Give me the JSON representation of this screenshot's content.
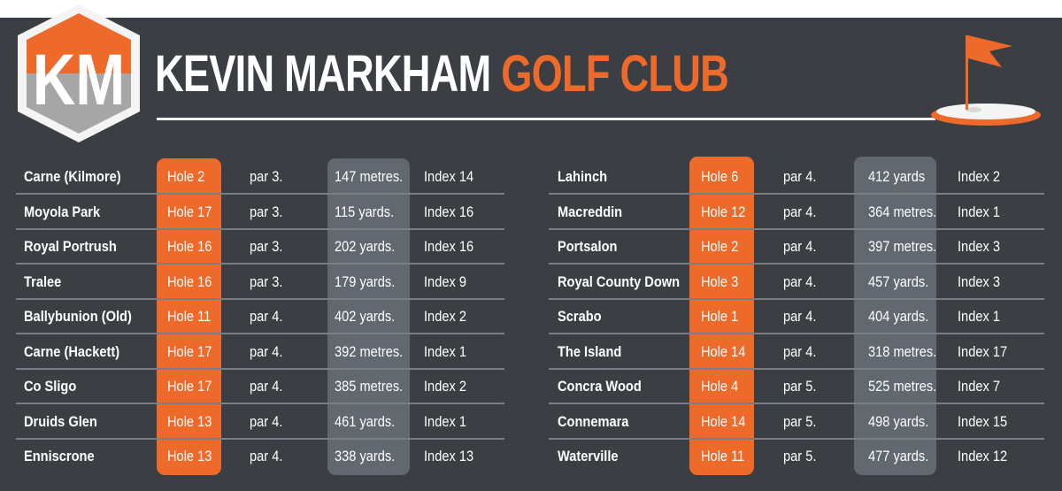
{
  "brand": {
    "logo_text": "KM",
    "title_main": "KEVIN MARKHAM",
    "title_accent": "GOLF CLUB",
    "colors": {
      "accent": "#ee6a2b",
      "background": "#3b3f44",
      "highlight_grey": "#626870"
    },
    "flag_icon": "golf-flag-icon"
  },
  "left_table": [
    {
      "course": "Carne (Kilmore)",
      "hole": "Hole 2",
      "par": "par 3.",
      "distance": "147 metres.",
      "index": "Index 14"
    },
    {
      "course": "Moyola Park",
      "hole": "Hole 17",
      "par": "par 3.",
      "distance": "115 yards.",
      "index": "Index 16"
    },
    {
      "course": "Royal Portrush",
      "hole": "Hole 16",
      "par": "par 3.",
      "distance": "202 yards.",
      "index": "Index 16"
    },
    {
      "course": "Tralee",
      "hole": "Hole 16",
      "par": "par 3.",
      "distance": "179 yards.",
      "index": "Index 9"
    },
    {
      "course": "Ballybunion (Old)",
      "hole": "Hole 11",
      "par": "par 4.",
      "distance": "402 yards.",
      "index": "Index 2"
    },
    {
      "course": "Carne (Hackett)",
      "hole": "Hole 17",
      "par": "par 4.",
      "distance": "392 metres.",
      "index": "Index 1"
    },
    {
      "course": "Co Sligo",
      "hole": "Hole 17",
      "par": "par 4.",
      "distance": "385 metres.",
      "index": "Index 2"
    },
    {
      "course": "Druids Glen",
      "hole": "Hole 13",
      "par": "par 4.",
      "distance": "461 yards.",
      "index": "Index 1"
    },
    {
      "course": "Enniscrone",
      "hole": "Hole 13",
      "par": "par 4.",
      "distance": "338 yards.",
      "index": "Index 13"
    }
  ],
  "right_table": [
    {
      "course": "Lahinch",
      "hole": "Hole 6",
      "par": "par 4.",
      "distance": "412 yards",
      "index": "Index 2"
    },
    {
      "course": "Macreddin",
      "hole": "Hole 12",
      "par": "par 4.",
      "distance": "364 metres.",
      "index": "Index 1"
    },
    {
      "course": "Portsalon",
      "hole": "Hole 2",
      "par": "par 4.",
      "distance": "397 metres.",
      "index": "Index 3"
    },
    {
      "course": "Royal County Down",
      "hole": "Hole 3",
      "par": "par 4.",
      "distance": "457 yards.",
      "index": "Index 3"
    },
    {
      "course": "Scrabo",
      "hole": "Hole 1",
      "par": "par 4.",
      "distance": "404 yards.",
      "index": "Index 1"
    },
    {
      "course": "The Island",
      "hole": "Hole 14",
      "par": "par 4.",
      "distance": "318 metres.",
      "index": "Index 17"
    },
    {
      "course": "Concra Wood",
      "hole": "Hole 4",
      "par": "par 5.",
      "distance": "525 metres.",
      "index": "Index 7"
    },
    {
      "course": "Connemara",
      "hole": "Hole 14",
      "par": "par 5.",
      "distance": "498 yards.",
      "index": "Index 15"
    },
    {
      "course": "Waterville",
      "hole": "Hole 11",
      "par": "par 5.",
      "distance": "477 yards.",
      "index": "Index 12"
    }
  ]
}
